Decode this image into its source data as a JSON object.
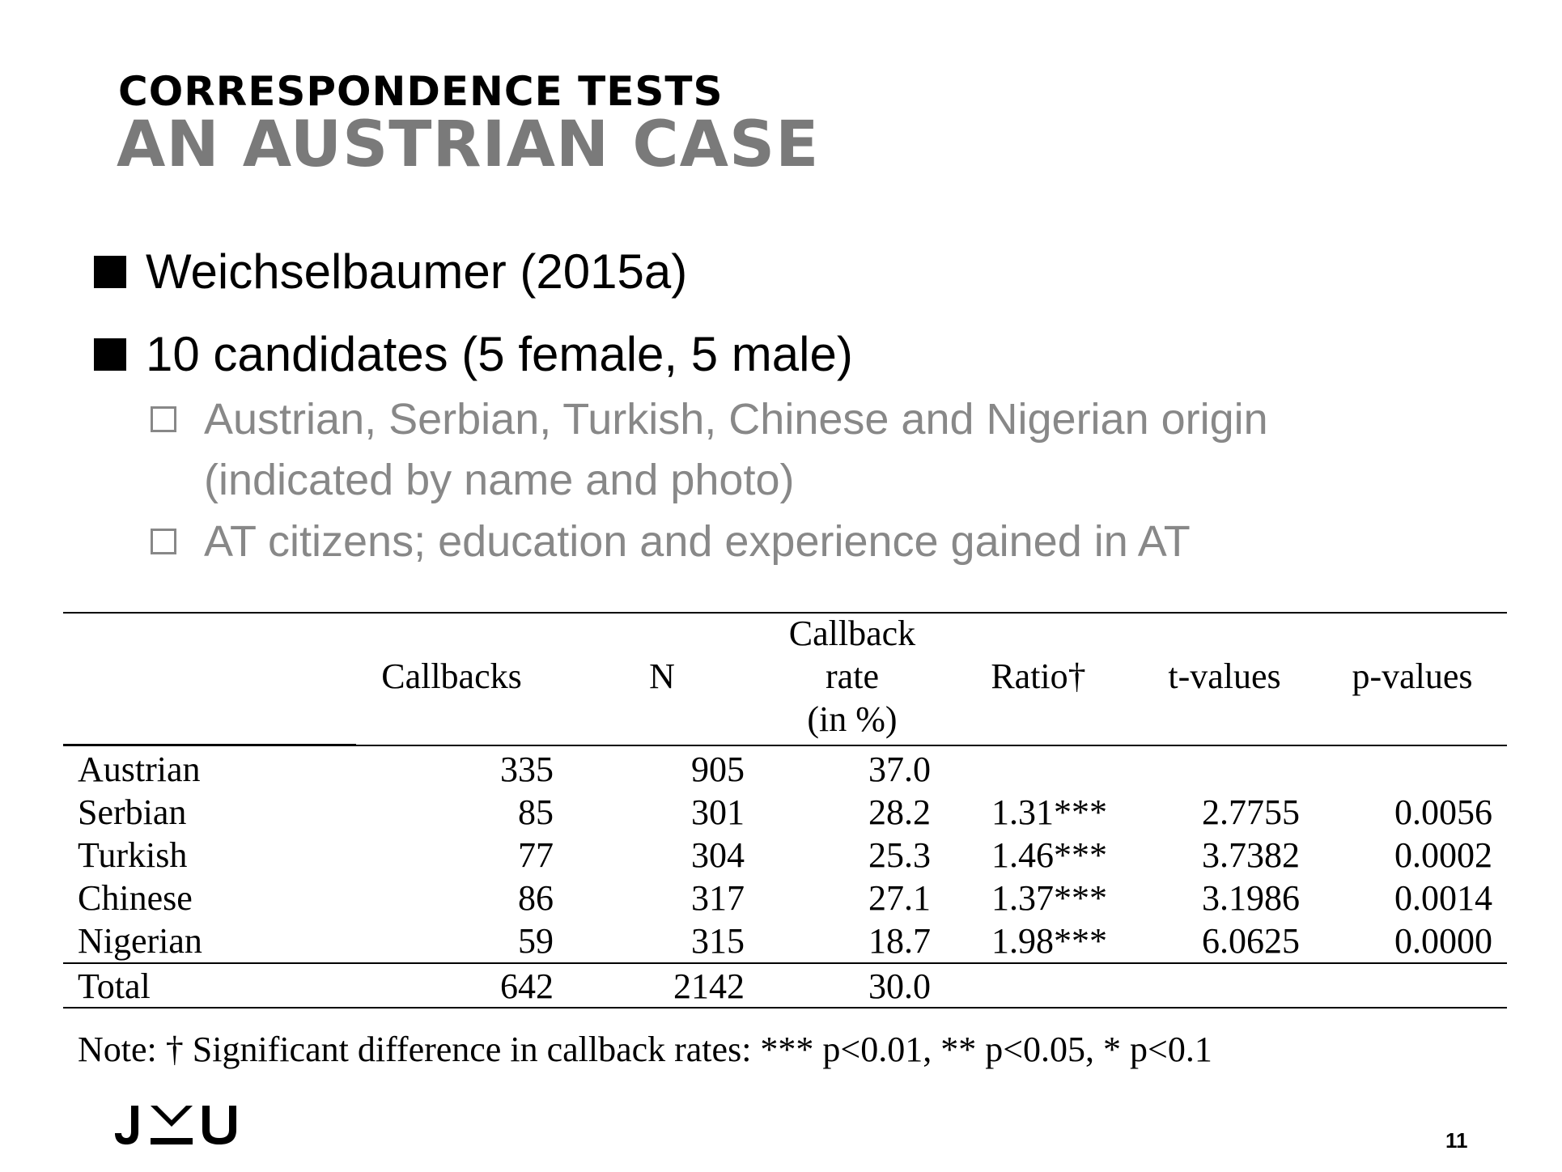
{
  "slide": {
    "title_line1": "CORRESPONDENCE TESTS",
    "title_line2": "AN AUSTRIAN CASE",
    "bullets": [
      "Weichselbaumer (2015a)",
      "10 candidates (5 female, 5 male)"
    ],
    "sub_bullets": [
      "Austrian, Serbian, Turkish, Chinese and Nigerian origin",
      "(indicated by name and photo)",
      "AT citizens; education and experience gained in AT"
    ],
    "page_number": "11",
    "logo_text": "JKU"
  },
  "table": {
    "headers": {
      "callbacks": "Callbacks",
      "n": "N",
      "rate_line1": "Callback",
      "rate_line2": "rate",
      "rate_line3": "(in %)",
      "ratio": "Ratio†",
      "tvalues": "t-values",
      "pvalues": "p-values"
    },
    "rows": [
      {
        "label": "Austrian",
        "callbacks": "335",
        "n": "905",
        "rate": "37.0",
        "ratio": "",
        "t": "",
        "p": ""
      },
      {
        "label": "Serbian",
        "callbacks": "85",
        "n": "301",
        "rate": "28.2",
        "ratio": "1.31***",
        "t": "2.7755",
        "p": "0.0056"
      },
      {
        "label": "Turkish",
        "callbacks": "77",
        "n": "304",
        "rate": "25.3",
        "ratio": "1.46***",
        "t": "3.7382",
        "p": "0.0002"
      },
      {
        "label": "Chinese",
        "callbacks": "86",
        "n": "317",
        "rate": "27.1",
        "ratio": "1.37***",
        "t": "3.1986",
        "p": "0.0014"
      },
      {
        "label": "Nigerian",
        "callbacks": "59",
        "n": "315",
        "rate": "18.7",
        "ratio": "1.98***",
        "t": "6.0625",
        "p": "0.0000"
      }
    ],
    "total": {
      "label": "Total",
      "callbacks": "642",
      "n": "2142",
      "rate": "30.0"
    },
    "note": "Note: † Significant difference in callback rates: *** p<0.01, ** p<0.05, * p<0.1"
  }
}
